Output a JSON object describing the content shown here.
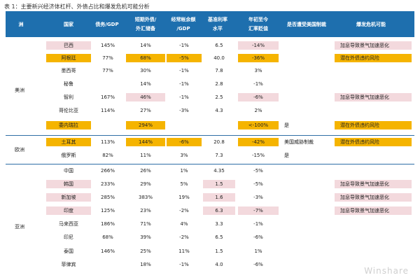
{
  "caption": "表 1：主要新兴经济体杠杆、外债占比和爆发危机可能分析",
  "headers": {
    "continent": "洲",
    "country": "国家",
    "debt_gdp": "债务/GDP",
    "st_debt_1": "短期外债/",
    "st_debt_2": "外汇储备",
    "ca_1": "经常帐余额",
    "ca_2": "/GDP",
    "rate_1": "基准利率",
    "rate_2": "水平",
    "fx_1": "年初至今",
    "fx_2": "汇率贬值",
    "sanction": "是否遭受美国制裁",
    "crisis": "爆发危机可能"
  },
  "regions": {
    "americas": "美洲",
    "europe": "欧洲",
    "asia": "亚洲"
  },
  "rows": [
    {
      "country": "巴西",
      "debt": "145%",
      "st": "14%",
      "ca": "-1%",
      "rate": "6.5",
      "fx": "-14%",
      "sanction": "",
      "crisis": "加息导致景气加速恶化"
    },
    {
      "country": "阿根廷",
      "debt": "77%",
      "st": "68%",
      "ca": "-5%",
      "rate": "40.0",
      "fx": "-36%",
      "sanction": "",
      "crisis": "潜在外债违约风险"
    },
    {
      "country": "墨西哥",
      "debt": "77%",
      "st": "30%",
      "ca": "-1%",
      "rate": "7.8",
      "fx": "3%",
      "sanction": "",
      "crisis": ""
    },
    {
      "country": "秘鲁",
      "debt": "",
      "st": "14%",
      "ca": "-1%",
      "rate": "2.8",
      "fx": "-1%",
      "sanction": "",
      "crisis": ""
    },
    {
      "country": "智利",
      "debt": "167%",
      "st": "46%",
      "ca": "-1%",
      "rate": "2.5",
      "fx": "-6%",
      "sanction": "",
      "crisis": "加息导致景气加速恶化"
    },
    {
      "country": "哥伦比亚",
      "debt": "114%",
      "st": "27%",
      "ca": "-3%",
      "rate": "4.3",
      "fx": "2%",
      "sanction": "",
      "crisis": ""
    },
    {
      "country": "委内瑞拉",
      "debt": "",
      "st": "294%",
      "ca": "",
      "rate": "",
      "fx": "<-100%",
      "sanction": "是",
      "crisis": "潜在外债违约风险"
    },
    {
      "country": "土耳其",
      "debt": "113%",
      "st": "144%",
      "ca": "-6%",
      "rate": "20.8",
      "fx": "-42%",
      "sanction": "美国威胁制裁",
      "crisis": "潜在外债违约风险"
    },
    {
      "country": "俄罗斯",
      "debt": "82%",
      "st": "11%",
      "ca": "3%",
      "rate": "7.3",
      "fx": "-15%",
      "sanction": "是",
      "crisis": ""
    },
    {
      "country": "中国",
      "debt": "266%",
      "st": "26%",
      "ca": "1%",
      "rate": "4.35",
      "fx": "-5%",
      "sanction": "",
      "crisis": ""
    },
    {
      "country": "韩国",
      "debt": "233%",
      "st": "29%",
      "ca": "5%",
      "rate": "1.5",
      "fx": "-5%",
      "sanction": "",
      "crisis": "加息导致景气加速恶化"
    },
    {
      "country": "新加坡",
      "debt": "285%",
      "st": "383%",
      "ca": "19%",
      "rate": "1.6",
      "fx": "-3%",
      "sanction": "",
      "crisis": "加息导致景气加速恶化"
    },
    {
      "country": "印度",
      "debt": "125%",
      "st": "23%",
      "ca": "-2%",
      "rate": "6.3",
      "fx": "-7%",
      "sanction": "",
      "crisis": "加息导致景气加速恶化"
    },
    {
      "country": "马来西亚",
      "debt": "186%",
      "st": "71%",
      "ca": "4%",
      "rate": "3.3",
      "fx": "-1%",
      "sanction": "",
      "crisis": ""
    },
    {
      "country": "印尼",
      "debt": "68%",
      "st": "39%",
      "ca": "-2%",
      "rate": "6.5",
      "fx": "-6%",
      "sanction": "",
      "crisis": ""
    },
    {
      "country": "泰国",
      "debt": "146%",
      "st": "25%",
      "ca": "11%",
      "rate": "1.5",
      "fx": "1%",
      "sanction": "",
      "crisis": ""
    },
    {
      "country": "菲律宾",
      "debt": "",
      "st": "18%",
      "ca": "-1%",
      "rate": "4.0",
      "fx": "-6%",
      "sanction": "",
      "crisis": ""
    }
  ],
  "highlight_colors": {
    "pink": "#f3d9dd",
    "gold": "#f5b400",
    "header": "#1e6fae"
  },
  "watermark": "Winshare"
}
